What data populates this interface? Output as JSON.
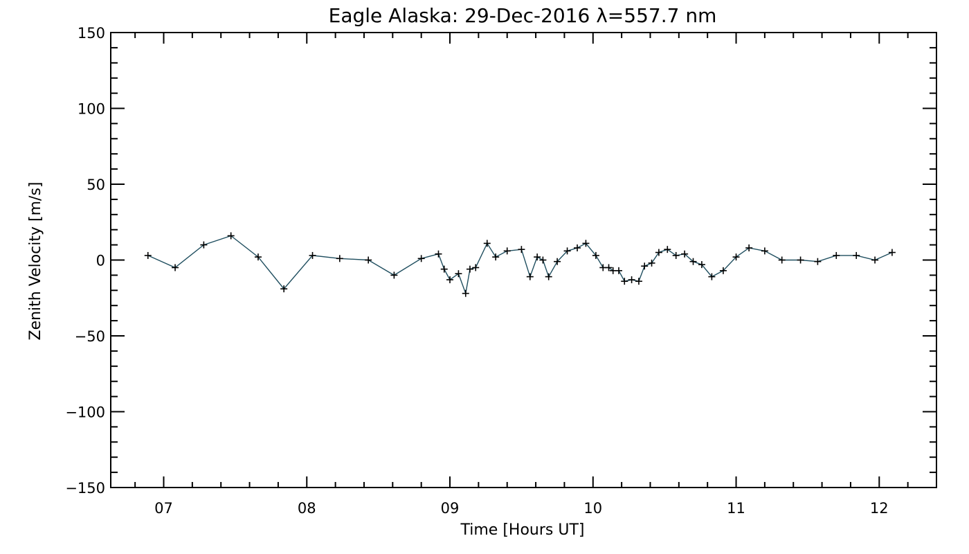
{
  "chart_data": {
    "type": "line",
    "title": "Eagle Alaska: 29-Dec-2016 λ=557.7 nm",
    "xlabel": "Time [Hours UT]",
    "ylabel": "Zenith Velocity [m/s]",
    "xlim": [
      6.63,
      12.4
    ],
    "ylim": [
      -150,
      150
    ],
    "x_tick_values": [
      7,
      8,
      9,
      10,
      11,
      12
    ],
    "x_tick_labels": [
      "07",
      "08",
      "09",
      "10",
      "11",
      "12"
    ],
    "y_tick_values": [
      150,
      100,
      50,
      0,
      -50,
      -100,
      -150
    ],
    "y_tick_labels": [
      "150",
      "100",
      "50",
      "0",
      "−50",
      "−100",
      "−150"
    ],
    "grid": false,
    "line_color": "#1f4e5f",
    "marker_color": "#000000",
    "marker": "plus",
    "series": [
      {
        "x": [
          6.89,
          7.08,
          7.28,
          7.47,
          7.66,
          7.84,
          8.04,
          8.23,
          8.43,
          8.61,
          8.8,
          8.92,
          8.96,
          9.0,
          9.06,
          9.11,
          9.14,
          9.18,
          9.26,
          9.32,
          9.4,
          9.5,
          9.56,
          9.61,
          9.65,
          9.69,
          9.75,
          9.82,
          9.89,
          9.95,
          10.02,
          10.07,
          10.11,
          10.14,
          10.18,
          10.22,
          10.27,
          10.32,
          10.36,
          10.41,
          10.46,
          10.52,
          10.58,
          10.64,
          10.7,
          10.76,
          10.83,
          10.91,
          11.0,
          11.09,
          11.2,
          11.32,
          11.45,
          11.57,
          11.7,
          11.84,
          11.97,
          12.09
        ],
        "y": [
          3,
          -5,
          10,
          16,
          2,
          -19,
          3,
          1,
          0,
          -10,
          1,
          4,
          -6,
          -13,
          -9,
          -22,
          -6,
          -5,
          11,
          2,
          6,
          7,
          -11,
          2,
          0,
          -11,
          -1,
          6,
          8,
          11,
          3,
          -5,
          -5,
          -7,
          -7,
          -14,
          -13,
          -14,
          -4,
          -2,
          5,
          7,
          3,
          4,
          -1,
          -3,
          -11,
          -7,
          2,
          8,
          6,
          0,
          0,
          -1,
          3,
          3,
          0,
          5
        ]
      }
    ]
  }
}
